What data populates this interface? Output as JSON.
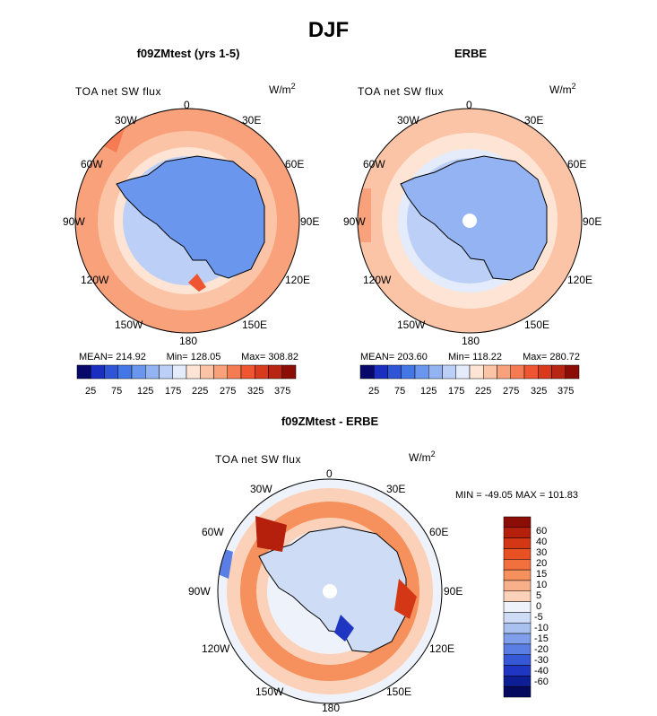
{
  "figure": {
    "title": "DJF"
  },
  "panels": [
    {
      "title": "f09ZMtest (yrs 1-5)",
      "variable": "TOA net SW flux",
      "units": "W/m",
      "units_exp": "2",
      "stats": {
        "mean": "MEAN= 214.92",
        "min": "Min= 128.05",
        "max": "Max= 308.82"
      },
      "lon_labels": [
        "0",
        "30E",
        "60E",
        "90E",
        "120E",
        "150E",
        "180",
        "150W",
        "120W",
        "90W",
        "60W",
        "30W"
      ]
    },
    {
      "title": "ERBE",
      "variable": "TOA net SW flux",
      "units": "W/m",
      "units_exp": "2",
      "stats": {
        "mean": "MEAN= 203.60",
        "min": "Min= 118.22",
        "max": "Max= 280.72"
      },
      "lon_labels": [
        "0",
        "30E",
        "60E",
        "90E",
        "120E",
        "150E",
        "180",
        "150W",
        "120W",
        "90W",
        "60W",
        "30W"
      ]
    },
    {
      "title": "f09ZMtest - ERBE",
      "variable": "TOA net SW flux",
      "units": "W/m",
      "units_exp": "2",
      "stats": {
        "minmax": "MIN = -49.05 MAX = 101.83"
      },
      "lon_labels": [
        "0",
        "30E",
        "60E",
        "90E",
        "120E",
        "150E",
        "180",
        "150W",
        "120W",
        "90W",
        "60W",
        "30W"
      ]
    }
  ],
  "colorbar_abs": {
    "colors": [
      "#08086b",
      "#1a2fbf",
      "#2f55d6",
      "#4477e6",
      "#6b96ee",
      "#93b3f3",
      "#bcd0f7",
      "#e4ecfb",
      "#fde4d4",
      "#fcc4a6",
      "#f9a17b",
      "#f57b52",
      "#ee5530",
      "#d93a1d",
      "#b82512",
      "#8b0d06"
    ],
    "tick_labels": [
      "25",
      "75",
      "125",
      "175",
      "225",
      "275",
      "325",
      "375"
    ]
  },
  "colorbar_diff": {
    "colors": [
      "#8b0d06",
      "#b4200c",
      "#d33715",
      "#e85124",
      "#f26f3e",
      "#f6915e",
      "#f8b08a",
      "#fbd2b9",
      "#eef3fb",
      "#cfdcf6",
      "#a9c1f1",
      "#809fea",
      "#5a7ee3",
      "#3558d7",
      "#1f36c2",
      "#0e1e95",
      "#060a5e"
    ],
    "tick_labels": [
      "60",
      "40",
      "30",
      "20",
      "15",
      "10",
      "5",
      "0",
      "-5",
      "-10",
      "-15",
      "-20",
      "-30",
      "-40",
      "-60"
    ]
  },
  "chart_data": {
    "type": "map",
    "projection": "south polar stereographic",
    "season": "DJF",
    "field": "TOA net SW flux",
    "units": "W/m2",
    "maps": [
      {
        "name": "f09ZMtest (yrs 1-5)",
        "mean": 214.92,
        "min": 128.05,
        "max": 308.82
      },
      {
        "name": "ERBE",
        "mean": 203.6,
        "min": 118.22,
        "max": 280.72
      },
      {
        "name": "f09ZMtest - ERBE",
        "min": -49.05,
        "max": 101.83
      }
    ]
  }
}
